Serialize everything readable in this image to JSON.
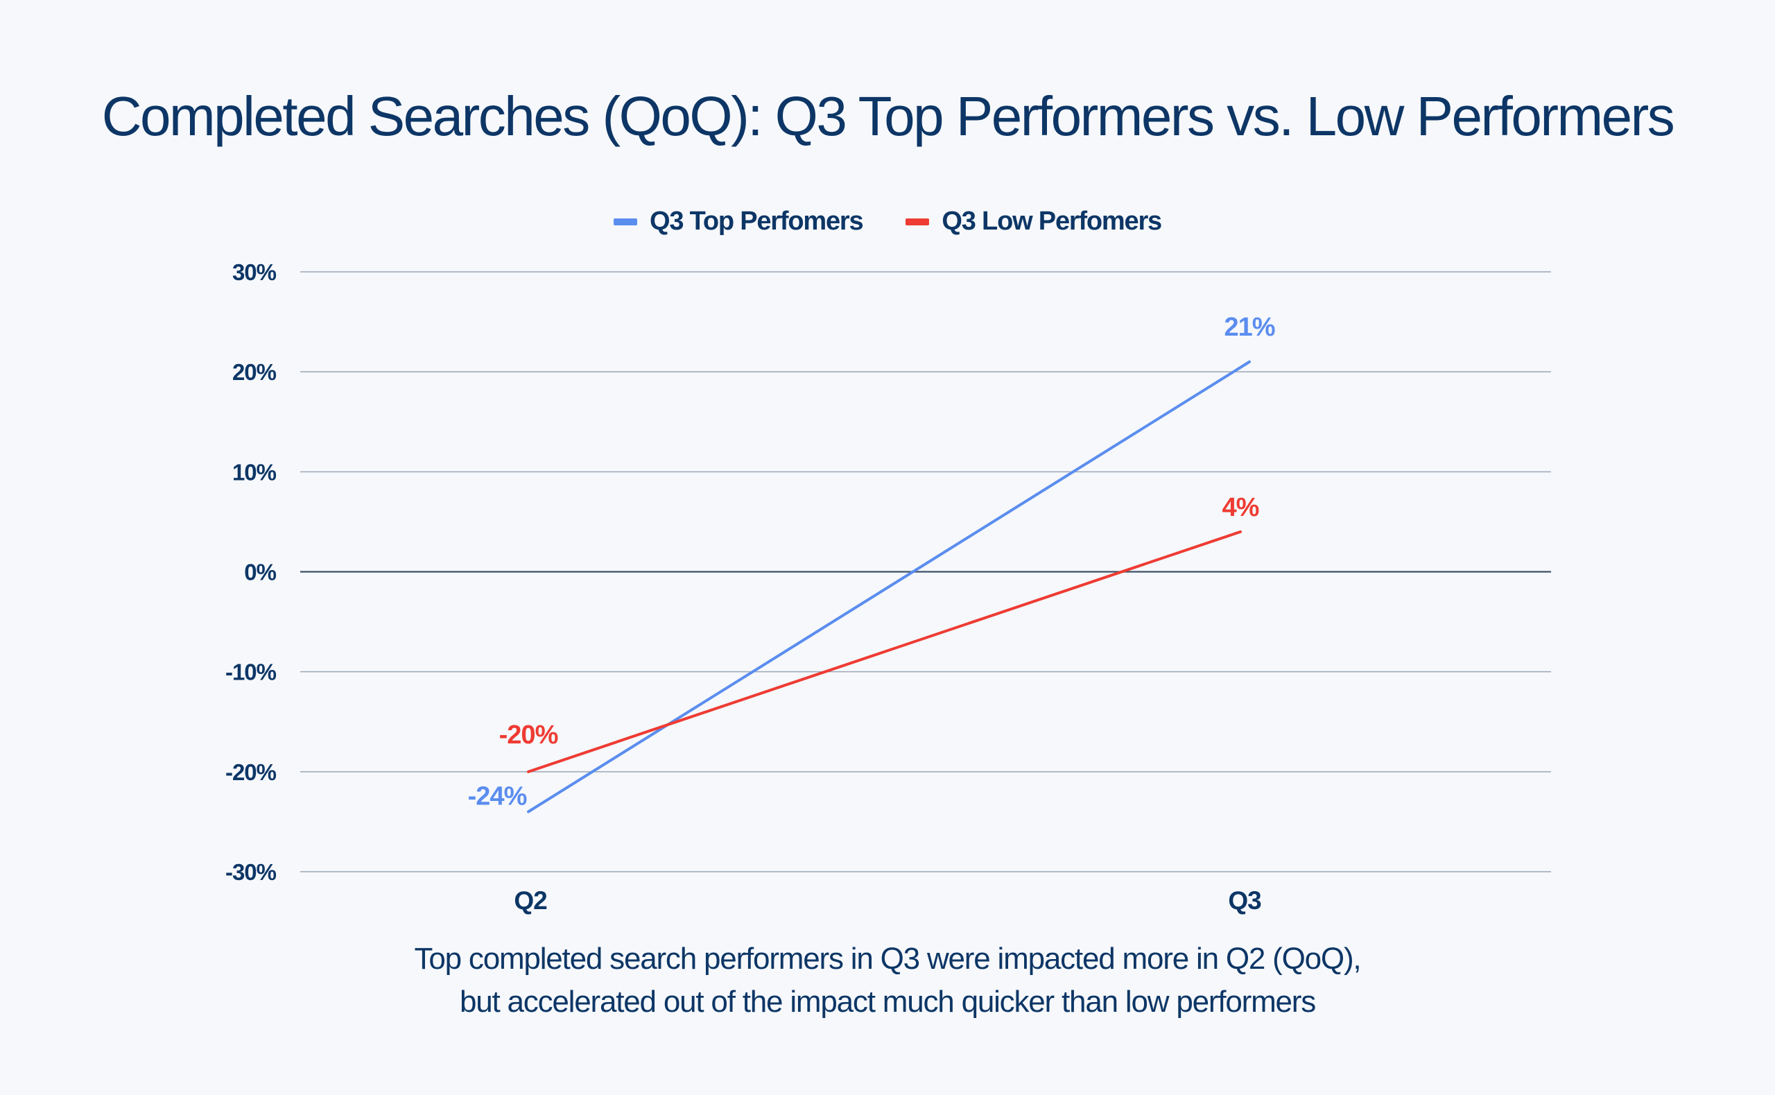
{
  "title": "Completed Searches (QoQ): Q3 Top Performers vs. Low Performers",
  "colors": {
    "top": "#5b8def",
    "low": "#ee3b33",
    "text": "#0d3666",
    "grid": "#9aa6b4",
    "zero": "#3d5065"
  },
  "caption": {
    "line1": "Top completed search performers in Q3 were impacted more in Q2 (QoQ),",
    "line2": "but accelerated out of the impact much quicker than low performers"
  },
  "chart_data": {
    "type": "line",
    "title": "Completed Searches (QoQ): Q3 Top Performers vs. Low Performers",
    "x": [
      "Q2",
      "Q3"
    ],
    "series": [
      {
        "name": "Q3 Top Perfomers",
        "values": [
          -24,
          21
        ],
        "labels": [
          "-24%",
          "21%"
        ],
        "color": "#5b8def"
      },
      {
        "name": "Q3 Low Perfomers",
        "values": [
          -20,
          4
        ],
        "labels": [
          "-20%",
          "4%"
        ],
        "color": "#ee3b33"
      }
    ],
    "yticks": [
      "30%",
      "20%",
      "10%",
      "0%",
      "-10%",
      "-20%",
      "-30%"
    ],
    "ylim": [
      -30,
      30
    ],
    "grid": true,
    "legend": "top-center",
    "xlabel": "",
    "ylabel": ""
  }
}
